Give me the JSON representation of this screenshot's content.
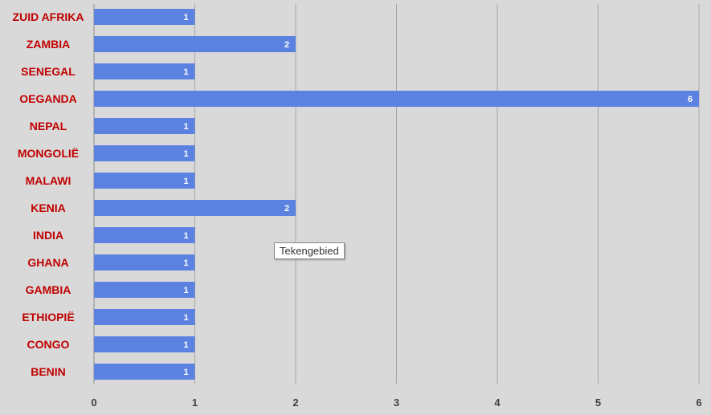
{
  "chart_data": {
    "type": "bar",
    "orientation": "horizontal",
    "categories": [
      "ZUID AFRIKA",
      "ZAMBIA",
      "SENEGAL",
      "OEGANDA",
      "NEPAL",
      "MONGOLIË",
      "MALAWI",
      "KENIA",
      "INDIA",
      "GHANA",
      "GAMBIA",
      "ETHIOPIË",
      "CONGO",
      "BENIN"
    ],
    "values": [
      1,
      2,
      1,
      6,
      1,
      1,
      1,
      2,
      1,
      1,
      1,
      1,
      1,
      1
    ],
    "xlim": [
      0,
      6
    ],
    "x_ticks": [
      "0",
      "1",
      "2",
      "3",
      "4",
      "5",
      "6"
    ],
    "grid": "vertical",
    "colors": {
      "bar": "#5b82e0",
      "category_label": "#c00000",
      "gridline": "#a6a6a6",
      "background": "#d9d9d9"
    }
  },
  "tooltip": {
    "text": "Tekengebied"
  }
}
